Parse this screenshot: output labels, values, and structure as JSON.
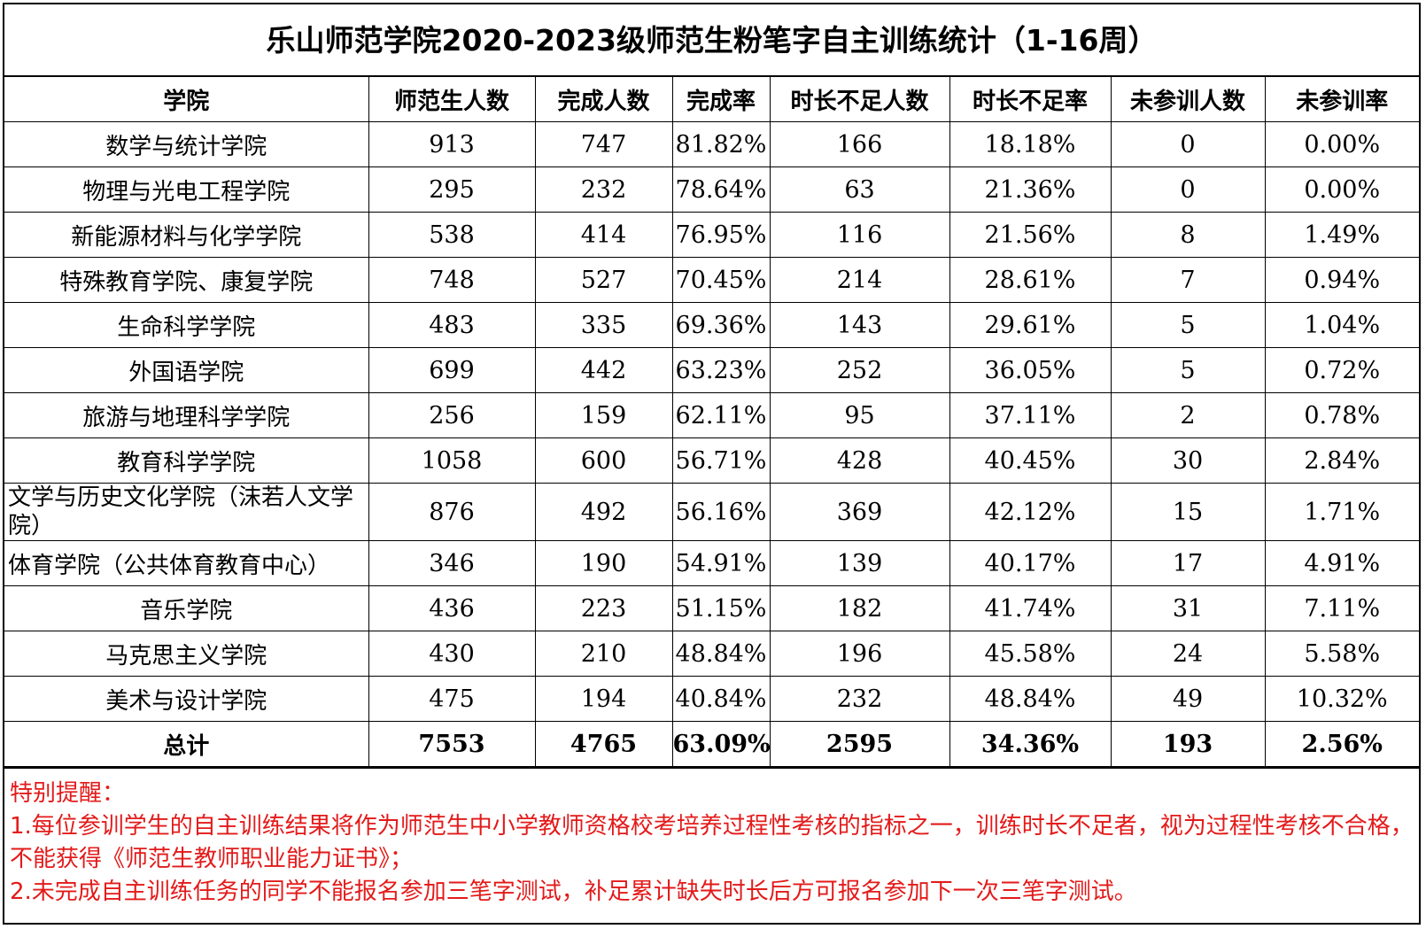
{
  "title": "乐山师范学院2020-2023级师范生粉笔字自主训练统计（1-16周）",
  "headers": [
    "学院",
    "师范生人数",
    "完成人数",
    "完成率",
    "时长不足人数",
    "时长不足率",
    "未参训人数",
    "未参训率"
  ],
  "rows": [
    [
      "数学与统计学院",
      "913",
      "747",
      "81.82%",
      "166",
      "18.18%",
      "0",
      "0.00%"
    ],
    [
      "物理与光电工程学院",
      "295",
      "232",
      "78.64%",
      "63",
      "21.36%",
      "0",
      "0.00%"
    ],
    [
      "新能源材料与化学学院",
      "538",
      "414",
      "76.95%",
      "116",
      "21.56%",
      "8",
      "1.49%"
    ],
    [
      "特殊教育学院、康复学院",
      "748",
      "527",
      "70.45%",
      "214",
      "28.61%",
      "7",
      "0.94%"
    ],
    [
      "生命科学学院",
      "483",
      "335",
      "69.36%",
      "143",
      "29.61%",
      "5",
      "1.04%"
    ],
    [
      "外国语学院",
      "699",
      "442",
      "63.23%",
      "252",
      "36.05%",
      "5",
      "0.72%"
    ],
    [
      "旅游与地理科学学院",
      "256",
      "159",
      "62.11%",
      "95",
      "37.11%",
      "2",
      "0.78%"
    ],
    [
      "教育科学学院",
      "1058",
      "600",
      "56.71%",
      "428",
      "40.45%",
      "30",
      "2.84%"
    ],
    [
      "文学与历史文化学院（沫若人文学院）",
      "876",
      "492",
      "56.16%",
      "369",
      "42.12%",
      "15",
      "1.71%"
    ],
    [
      "体育学院（公共体育教育中心）",
      "346",
      "190",
      "54.91%",
      "139",
      "40.17%",
      "17",
      "4.91%"
    ],
    [
      "音乐学院",
      "436",
      "223",
      "51.15%",
      "182",
      "41.74%",
      "31",
      "7.11%"
    ],
    [
      "马克思主义学院",
      "430",
      "210",
      "48.84%",
      "196",
      "45.58%",
      "24",
      "5.58%"
    ],
    [
      "美术与设计学院",
      "475",
      "194",
      "40.84%",
      "232",
      "48.84%",
      "49",
      "10.32%"
    ]
  ],
  "total": [
    "总计",
    "7553",
    "4765",
    "63.09%",
    "2595",
    "34.36%",
    "193",
    "2.56%"
  ],
  "notes": {
    "heading": "特别提醒：",
    "line1": "1.每位参训学生的自主训练结果将作为师范生中小学教师资格校考培养过程性考核的指标之一，训练时长不足者，视为过程性考核不合格，不能获得《师范生教师职业能力证书》；",
    "line2": "2.未完成自主训练任务的同学不能报名参加三笔字测试，补足累计缺失时长后方可报名参加下一次三笔字测试。"
  },
  "colors": {
    "note_text": "#e31a1a",
    "border": "#000000"
  }
}
